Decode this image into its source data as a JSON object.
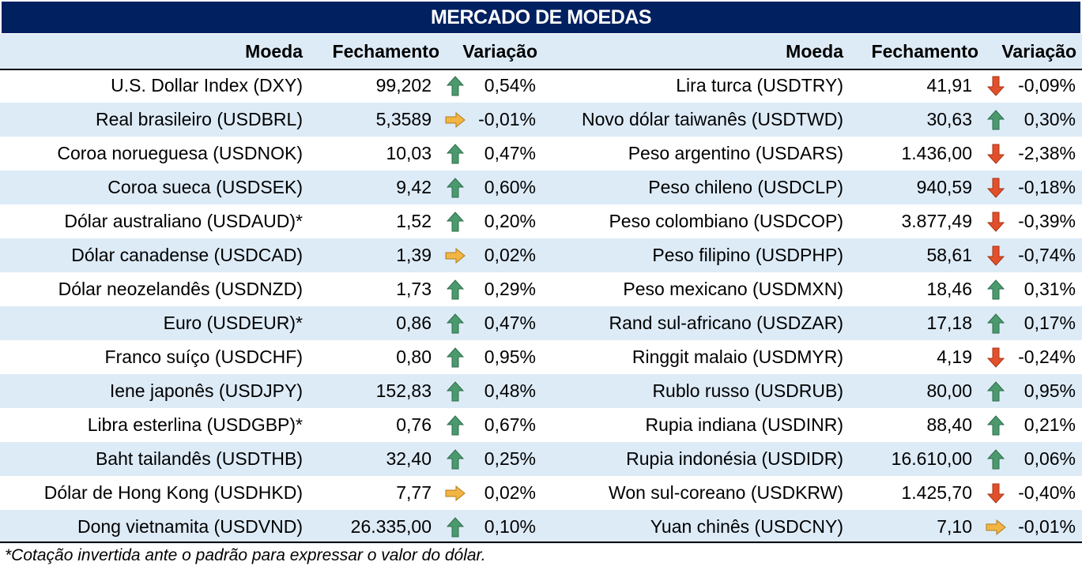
{
  "title": "MERCADO DE MOEDAS",
  "headers": {
    "currency": "Moeda",
    "close": "Fechamento",
    "change": "Variação"
  },
  "colors": {
    "title_bg": "#002060",
    "band": "#ddebf7",
    "up": "#4a9a6e",
    "flat": "#f2b544",
    "down": "#e2502b"
  },
  "left_rows": [
    {
      "name": "U.S. Dollar Index (DXY)",
      "close": "99,202",
      "trend": "up",
      "change": "0,54%"
    },
    {
      "name": "Real brasileiro (USDBRL)",
      "close": "5,3589",
      "trend": "flat",
      "change": "-0,01%"
    },
    {
      "name": "Coroa norueguesa (USDNOK)",
      "close": "10,03",
      "trend": "up",
      "change": "0,47%"
    },
    {
      "name": "Coroa sueca (USDSEK)",
      "close": "9,42",
      "trend": "up",
      "change": "0,60%"
    },
    {
      "name": "Dólar australiano (USDAUD)*",
      "close": "1,52",
      "trend": "up",
      "change": "0,20%"
    },
    {
      "name": "Dólar canadense (USDCAD)",
      "close": "1,39",
      "trend": "flat",
      "change": "0,02%"
    },
    {
      "name": "Dólar neozelandês (USDNZD)",
      "close": "1,73",
      "trend": "up",
      "change": "0,29%"
    },
    {
      "name": "Euro (USDEUR)*",
      "close": "0,86",
      "trend": "up",
      "change": "0,47%"
    },
    {
      "name": "Franco suíço (USDCHF)",
      "close": "0,80",
      "trend": "up",
      "change": "0,95%"
    },
    {
      "name": "Iene japonês (USDJPY)",
      "close": "152,83",
      "trend": "up",
      "change": "0,48%"
    },
    {
      "name": "Libra esterlina (USDGBP)*",
      "close": "0,76",
      "trend": "up",
      "change": "0,67%"
    },
    {
      "name": "Baht tailandês (USDTHB)",
      "close": "32,40",
      "trend": "up",
      "change": "0,25%"
    },
    {
      "name": "Dólar de Hong Kong (USDHKD)",
      "close": "7,77",
      "trend": "flat",
      "change": "0,02%"
    },
    {
      "name": "Dong vietnamita (USDVND)",
      "close": "26.335,00",
      "trend": "up",
      "change": "0,10%"
    }
  ],
  "right_rows": [
    {
      "name": "Lira turca (USDTRY)",
      "close": "41,91",
      "trend": "down",
      "change": "-0,09%"
    },
    {
      "name": "Novo dólar taiwanês (USDTWD)",
      "close": "30,63",
      "trend": "up",
      "change": "0,30%"
    },
    {
      "name": "Peso argentino (USDARS)",
      "close": "1.436,00",
      "trend": "down",
      "change": "-2,38%"
    },
    {
      "name": "Peso chileno (USDCLP)",
      "close": "940,59",
      "trend": "down",
      "change": "-0,18%"
    },
    {
      "name": "Peso colombiano (USDCOP)",
      "close": "3.877,49",
      "trend": "down",
      "change": "-0,39%"
    },
    {
      "name": "Peso filipino (USDPHP)",
      "close": "58,61",
      "trend": "down",
      "change": "-0,74%"
    },
    {
      "name": "Peso mexicano (USDMXN)",
      "close": "18,46",
      "trend": "up",
      "change": "0,31%"
    },
    {
      "name": "Rand sul-africano (USDZAR)",
      "close": "17,18",
      "trend": "up",
      "change": "0,17%"
    },
    {
      "name": "Ringgit malaio (USDMYR)",
      "close": "4,19",
      "trend": "down",
      "change": "-0,24%"
    },
    {
      "name": "Rublo russo (USDRUB)",
      "close": "80,00",
      "trend": "up",
      "change": "0,95%"
    },
    {
      "name": "Rupia indiana (USDINR)",
      "close": "88,40",
      "trend": "up",
      "change": "0,21%"
    },
    {
      "name": "Rupia indonésia (USDIDR)",
      "close": "16.610,00",
      "trend": "up",
      "change": "0,06%"
    },
    {
      "name": "Won sul-coreano (USDKRW)",
      "close": "1.425,70",
      "trend": "down",
      "change": "-0,40%"
    },
    {
      "name": "Yuan chinês (USDCNY)",
      "close": "7,10",
      "trend": "flat",
      "change": "-0,01%"
    }
  ],
  "footnote": "*Cotação invertida ante o padrão para expressar o valor do dólar."
}
